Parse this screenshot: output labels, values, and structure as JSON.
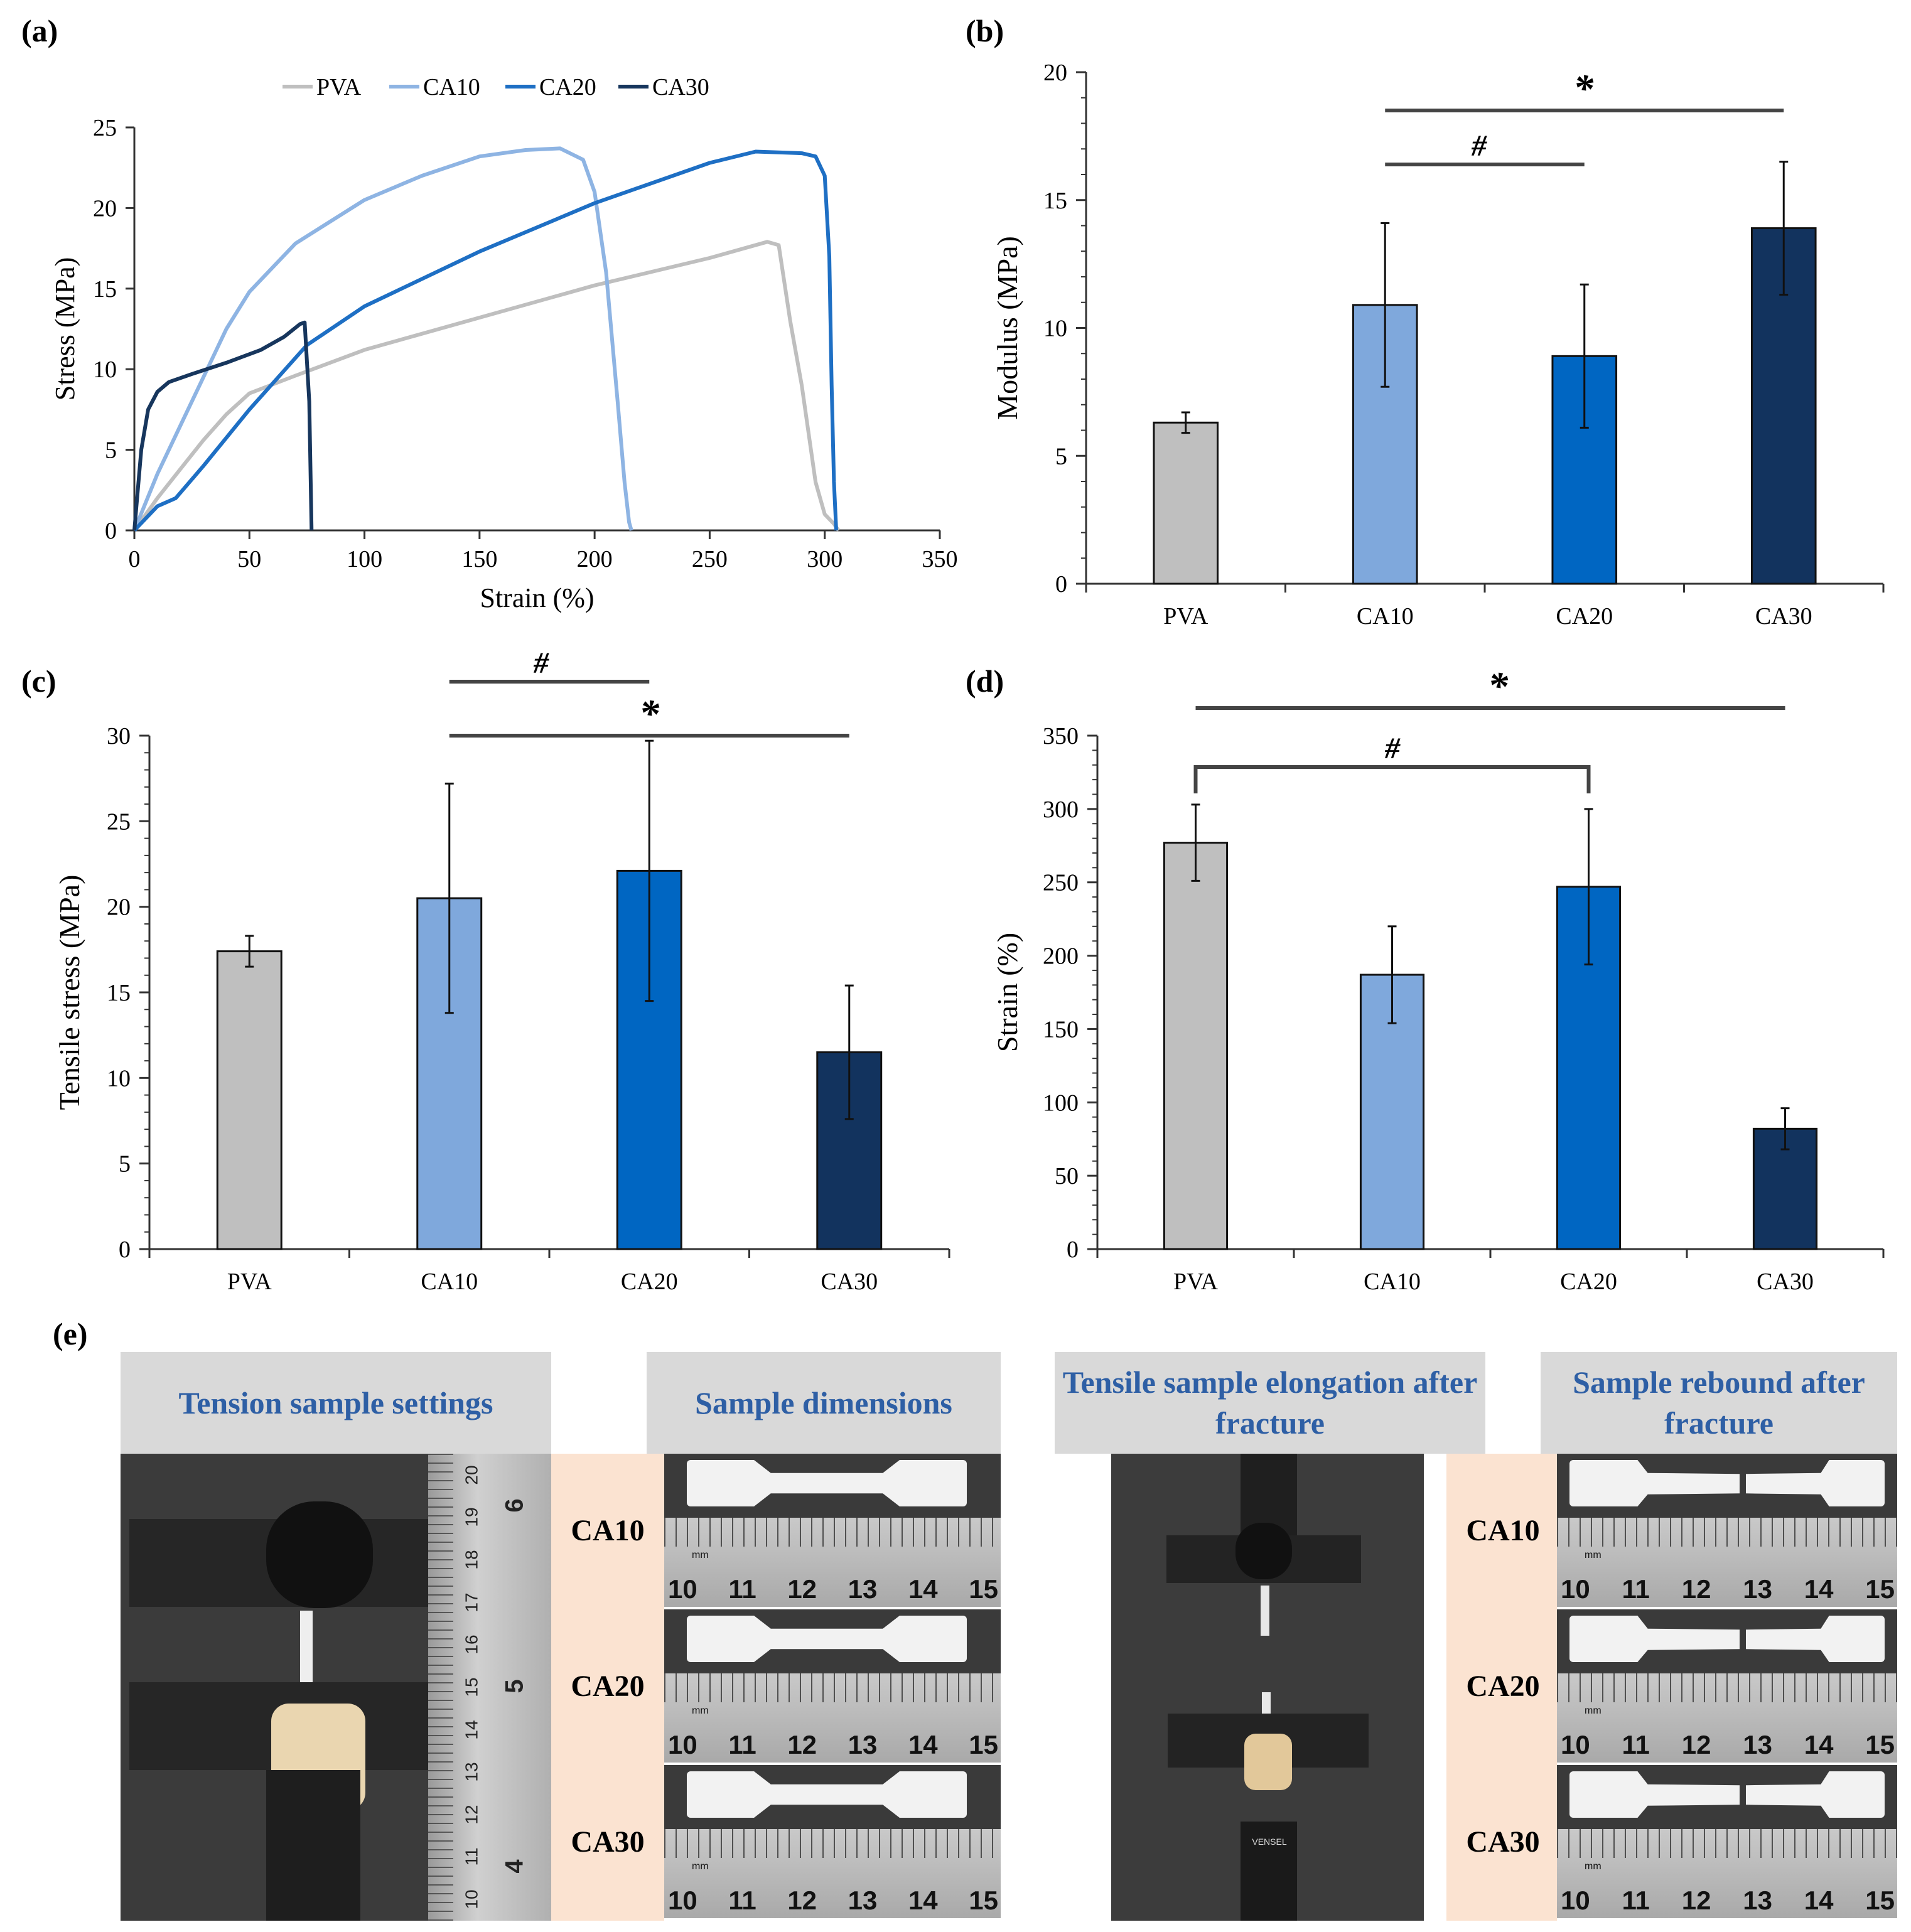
{
  "panel_labels": [
    "(a)",
    "(b)",
    "(c)",
    "(d)",
    "(e)"
  ],
  "colors": {
    "PVA": "#bfbfbf",
    "CA10": "#8eb4e3",
    "CA20": "#1e6fc4",
    "CA30": "#17365d",
    "bar_PVA": "#bfbfbf",
    "bar_CA10": "#7fa8dc",
    "bar_CA20": "#0066c2",
    "bar_CA30": "#12335e"
  },
  "chart_data": [
    {
      "id": "a",
      "type": "line",
      "xlabel": "Strain (%)",
      "ylabel": "Stress (MPa)",
      "xlim": [
        0,
        350
      ],
      "ylim": [
        0,
        25
      ],
      "xticks": [
        0,
        50,
        100,
        150,
        200,
        250,
        300,
        350
      ],
      "yticks": [
        0,
        5,
        10,
        15,
        20,
        25
      ],
      "legend": [
        "PVA",
        "CA10",
        "CA20",
        "CA30"
      ],
      "series": [
        {
          "name": "PVA",
          "points": [
            [
              0,
              0
            ],
            [
              10,
              2
            ],
            [
              20,
              3.8
            ],
            [
              30,
              5.6
            ],
            [
              40,
              7.2
            ],
            [
              50,
              8.5
            ],
            [
              70,
              9.6
            ],
            [
              100,
              11.2
            ],
            [
              150,
              13.2
            ],
            [
              200,
              15.2
            ],
            [
              250,
              16.9
            ],
            [
              275,
              17.9
            ],
            [
              280,
              17.7
            ],
            [
              285,
              13
            ],
            [
              290,
              9
            ],
            [
              296,
              3
            ],
            [
              300,
              1
            ],
            [
              304,
              0.4
            ],
            [
              306,
              0
            ]
          ]
        },
        {
          "name": "CA10",
          "points": [
            [
              0,
              0
            ],
            [
              10,
              3.5
            ],
            [
              20,
              6.5
            ],
            [
              30,
              9.5
            ],
            [
              40,
              12.5
            ],
            [
              50,
              14.8
            ],
            [
              70,
              17.8
            ],
            [
              100,
              20.5
            ],
            [
              125,
              22
            ],
            [
              150,
              23.2
            ],
            [
              170,
              23.6
            ],
            [
              185,
              23.7
            ],
            [
              195,
              23
            ],
            [
              200,
              21
            ],
            [
              205,
              16
            ],
            [
              210,
              8
            ],
            [
              213,
              3
            ],
            [
              215,
              0.5
            ],
            [
              216,
              0
            ]
          ]
        },
        {
          "name": "CA20",
          "points": [
            [
              0,
              0
            ],
            [
              10,
              1.5
            ],
            [
              18,
              2
            ],
            [
              30,
              4
            ],
            [
              50,
              7.5
            ],
            [
              75,
              11.5
            ],
            [
              100,
              13.9
            ],
            [
              150,
              17.3
            ],
            [
              200,
              20.3
            ],
            [
              250,
              22.8
            ],
            [
              270,
              23.5
            ],
            [
              290,
              23.4
            ],
            [
              296,
              23.2
            ],
            [
              300,
              22
            ],
            [
              302,
              17
            ],
            [
              303,
              9
            ],
            [
              304,
              3
            ],
            [
              305,
              0
            ]
          ]
        },
        {
          "name": "CA30",
          "points": [
            [
              0,
              0
            ],
            [
              3,
              5
            ],
            [
              6,
              7.5
            ],
            [
              10,
              8.6
            ],
            [
              15,
              9.2
            ],
            [
              25,
              9.7
            ],
            [
              40,
              10.4
            ],
            [
              55,
              11.2
            ],
            [
              65,
              12
            ],
            [
              72,
              12.8
            ],
            [
              74,
              12.9
            ],
            [
              76,
              8
            ],
            [
              77,
              0
            ]
          ]
        }
      ]
    },
    {
      "id": "b",
      "type": "bar",
      "ylabel": "Modulus (MPa)",
      "ylim": [
        0,
        20
      ],
      "yticks": [
        0,
        5,
        10,
        15,
        20
      ],
      "categories": [
        "PVA",
        "CA10",
        "CA20",
        "CA30"
      ],
      "values": [
        6.3,
        10.9,
        8.9,
        13.9
      ],
      "errors": [
        0.4,
        3.2,
        2.8,
        2.6
      ],
      "significance": [
        {
          "label": "*",
          "from": "CA10",
          "to": "CA30"
        },
        {
          "label": "#",
          "from": "CA10",
          "to": "CA20"
        }
      ]
    },
    {
      "id": "c",
      "type": "bar",
      "ylabel": "Tensile stress (MPa)",
      "ylim": [
        0,
        30
      ],
      "yticks": [
        0,
        5,
        10,
        15,
        20,
        25,
        30
      ],
      "categories": [
        "PVA",
        "CA10",
        "CA20",
        "CA30"
      ],
      "values": [
        17.4,
        20.5,
        22.1,
        11.5
      ],
      "errors": [
        0.9,
        6.7,
        7.6,
        3.9
      ],
      "significance": [
        {
          "label": "#",
          "from": "CA10",
          "to": "CA20"
        },
        {
          "label": "*",
          "from": "CA10",
          "to": "CA30"
        }
      ]
    },
    {
      "id": "d",
      "type": "bar",
      "ylabel": "Strain (%)",
      "ylim": [
        0,
        350
      ],
      "yticks": [
        0,
        50,
        100,
        150,
        200,
        250,
        300,
        350
      ],
      "categories": [
        "PVA",
        "CA10",
        "CA20",
        "CA30"
      ],
      "values": [
        277,
        187,
        247,
        82
      ],
      "errors": [
        26,
        33,
        53,
        14
      ],
      "significance": [
        {
          "label": "*",
          "from": "PVA",
          "to": "CA30"
        },
        {
          "label": "#",
          "from": "PVA",
          "to": "CA20"
        }
      ]
    }
  ],
  "panel_e": {
    "headers": [
      "Tension sample settings",
      "Sample dimensions",
      "Tensile sample elongation after fracture",
      "Sample rebound after fracture"
    ],
    "samples": [
      "CA10",
      "CA20",
      "CA30"
    ],
    "ruler_numbers": [
      "10",
      "11",
      "12",
      "13",
      "14",
      "15"
    ],
    "ruler_unit": "mm",
    "vertical_ruler": [
      "20",
      "19",
      "18",
      "17",
      "16",
      "15",
      "14",
      "13",
      "12",
      "11",
      "10"
    ],
    "vertical_ruler_inch": [
      "6",
      "5",
      "4"
    ],
    "sensor_text": "VENSEL"
  }
}
